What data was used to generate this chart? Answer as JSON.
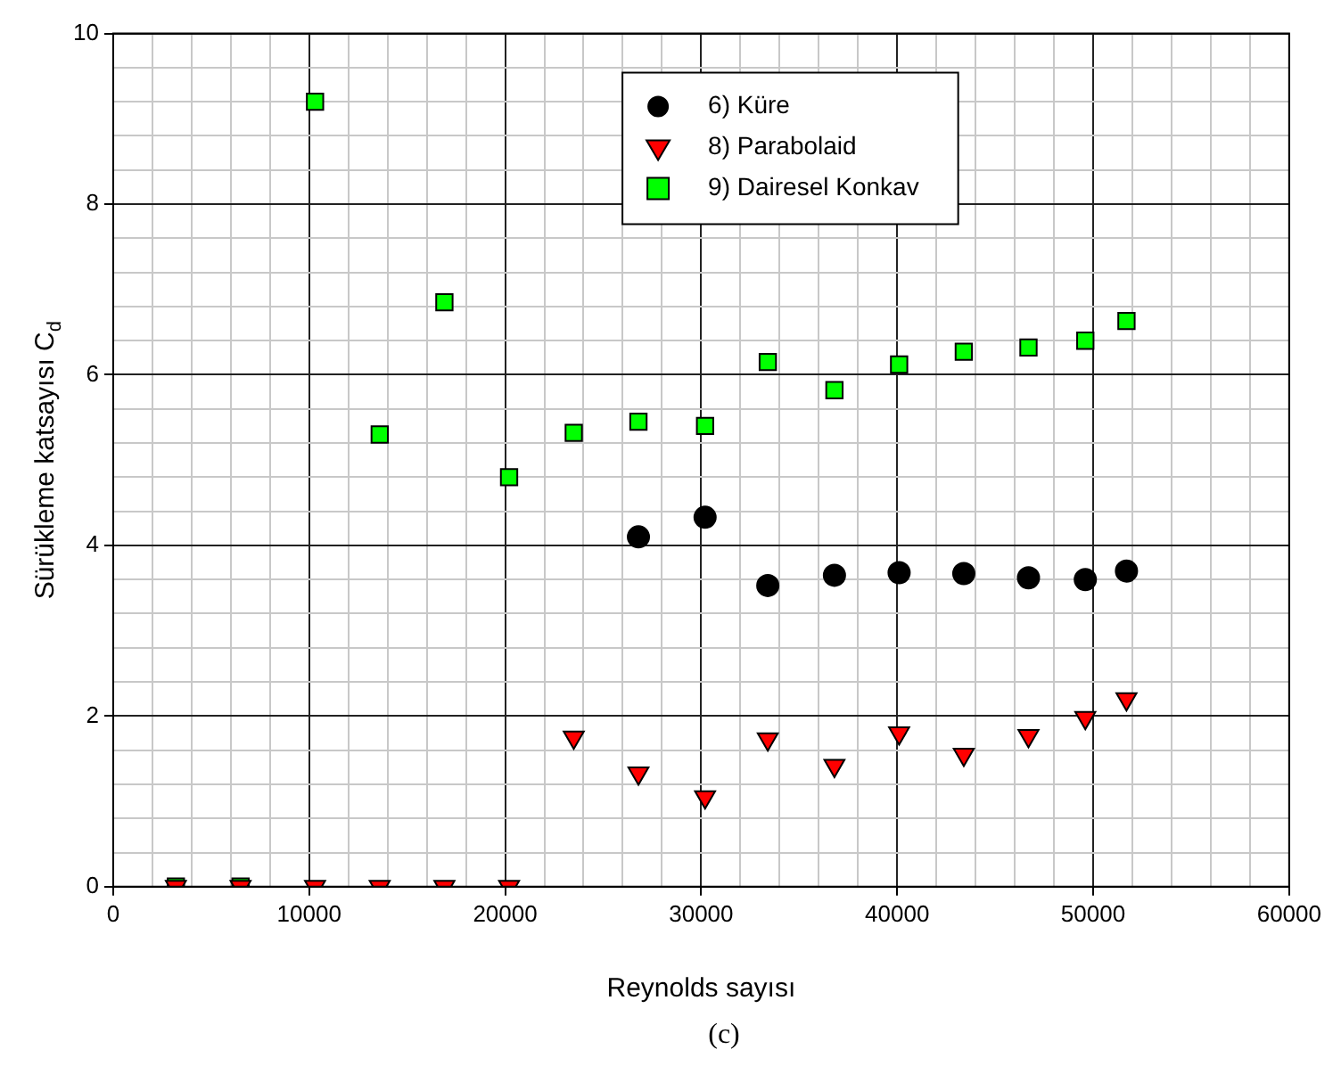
{
  "chart_data": {
    "type": "scatter",
    "xlabel": "Reynolds sayısı",
    "ylabel": "Sürükleme katsayısı C$_{d}$",
    "annotations": [
      "(c)"
    ],
    "x": [
      3200,
      6500,
      10300,
      13600,
      16900,
      20200,
      23500,
      26800,
      30200,
      33400,
      36800,
      40100,
      43400,
      46700,
      49600,
      51700
    ],
    "series": [
      {
        "name": "6) Küre",
        "color": "#000000",
        "marker": "circle",
        "values": [
          null,
          null,
          null,
          null,
          null,
          null,
          null,
          4.1,
          4.33,
          3.53,
          3.65,
          3.68,
          3.67,
          3.62,
          3.6,
          3.7
        ]
      },
      {
        "name": "8) Parabolaid",
        "color": "#ff0000",
        "marker": "triangle",
        "values": [
          0,
          0,
          0,
          0,
          0,
          0,
          1.75,
          1.33,
          1.05,
          1.73,
          1.42,
          1.8,
          1.55,
          1.77,
          1.98,
          2.2
        ]
      },
      {
        "name": "9) Dairesel Konkav",
        "color": "#00ff00",
        "marker": "square",
        "values": [
          0,
          0,
          9.2,
          5.3,
          6.85,
          4.8,
          5.32,
          5.45,
          5.4,
          6.15,
          5.82,
          6.12,
          6.27,
          6.32,
          6.4,
          6.63
        ]
      }
    ],
    "xlim": [
      0,
      60000
    ],
    "ylim": [
      0,
      10
    ],
    "xticks": [
      0,
      {
        "value": 2000,
        "label": null
      },
      {
        "value": 4000,
        "label": null
      },
      {
        "value": 6000,
        "label": null
      },
      {
        "value": 8000,
        "label": null
      },
      10000,
      {
        "value": 12000,
        "label": null
      },
      {
        "value": 14000,
        "label": null
      },
      {
        "value": 16000,
        "label": null
      },
      {
        "value": 18000,
        "label": null
      },
      20000,
      {
        "value": 22000,
        "label": null
      },
      {
        "value": 24000,
        "label": null
      },
      {
        "value": 26000,
        "label": null
      },
      {
        "value": 28000,
        "label": null
      },
      30000,
      {
        "value": 32000,
        "label": null
      },
      {
        "value": 34000,
        "label": null
      },
      {
        "value": 36000,
        "label": null
      },
      {
        "value": 38000,
        "label": null
      },
      40000,
      {
        "value": 42000,
        "label": null
      },
      {
        "value": 44000,
        "label": null
      },
      {
        "value": 46000,
        "label": null
      },
      {
        "value": 48000,
        "label": null
      },
      50000,
      {
        "value": 52000,
        "label": null
      },
      {
        "value": 54000,
        "label": null
      },
      {
        "value": 56000,
        "label": null
      },
      {
        "value": 58000,
        "label": null
      },
      60000
    ],
    "yticks": [
      0,
      {
        "value": 0.4,
        "label": null
      },
      {
        "value": 0.8,
        "label": null
      },
      {
        "value": 1.2,
        "label": null
      },
      {
        "value": 1.6,
        "label": null
      },
      2,
      {
        "value": 2.4,
        "label": null
      },
      {
        "value": 2.8,
        "label": null
      },
      {
        "value": 3.2,
        "label": null
      },
      {
        "value": 3.6,
        "label": null
      },
      4,
      {
        "value": 4.4,
        "label": null
      },
      {
        "value": 4.8,
        "label": null
      },
      {
        "value": 5.2,
        "label": null
      },
      {
        "value": 5.6,
        "label": null
      },
      6,
      {
        "value": 6.4,
        "label": null
      },
      {
        "value": 6.8,
        "label": null
      },
      {
        "value": 7.2,
        "label": null
      },
      {
        "value": 7.6,
        "label": null
      },
      8,
      {
        "value": 8.4,
        "label": null
      },
      {
        "value": 8.8,
        "label": null
      },
      {
        "value": 9.2,
        "label": null
      },
      {
        "value": 9.6,
        "label": null
      },
      10
    ],
    "grid": true,
    "legend": "top"
  }
}
